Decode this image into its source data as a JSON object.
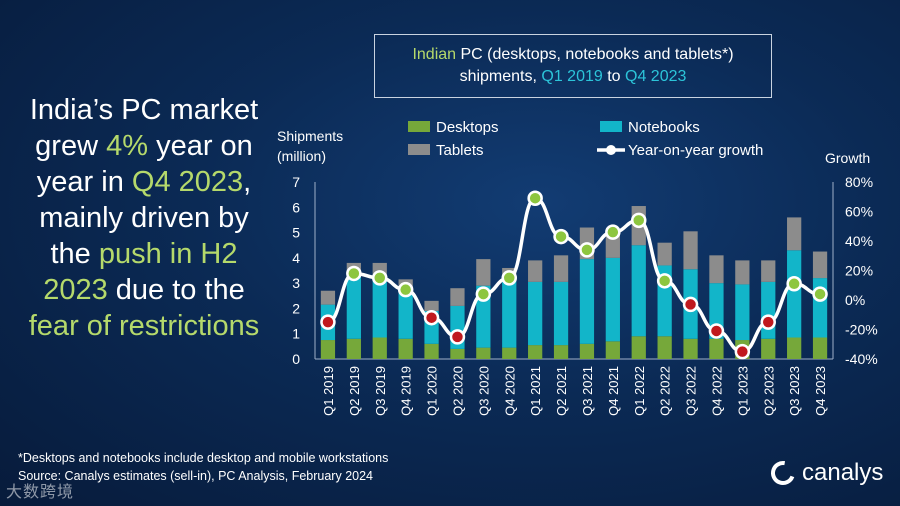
{
  "headline": {
    "l1": "India’s PC market",
    "l2a": "grew ",
    "l2b": "4%",
    "l2c": " year on",
    "l3a": "year in ",
    "l3b": "Q4 2023",
    "l3c": ",",
    "l4": "mainly driven by",
    "l5a": "the ",
    "l5b": "push in H2",
    "l6a": "2023",
    "l6b": " due to the",
    "l7": "fear of restrictions"
  },
  "title": {
    "part1": "Indian",
    "part2": " PC (desktops, notebooks and tablets*)",
    "part3": "shipments, ",
    "part4": "Q1 2019",
    "part5": " to ",
    "part6": "Q4 2023"
  },
  "footnote": {
    "line1": "*Desktops and notebooks  include desktop and mobile workstations",
    "line2": "Source: Canalys estimates (sell-in), PC Analysis, February 2024"
  },
  "logo": {
    "text": "canalys"
  },
  "watermark": {
    "text": "大数跨境"
  },
  "chart_data": {
    "type": "bar",
    "stacked": true,
    "categories": [
      "Q1 2019",
      "Q2 2019",
      "Q3 2019",
      "Q4 2019",
      "Q1 2020",
      "Q2 2020",
      "Q3 2020",
      "Q4 2020",
      "Q1 2021",
      "Q2 2021",
      "Q3 2021",
      "Q4 2021",
      "Q1 2022",
      "Q2 2022",
      "Q3 2022",
      "Q4 2022",
      "Q1 2023",
      "Q2 2023",
      "Q3 2023",
      "Q4 2023"
    ],
    "ylabel_line1": "Shipments",
    "ylabel_line2": "(million)",
    "y2label": "Growth",
    "ylim": [
      0,
      7
    ],
    "yticks": [
      "0",
      "1",
      "2",
      "3",
      "4",
      "5",
      "6",
      "7"
    ],
    "y2lim": [
      -40,
      80
    ],
    "y2ticks": [
      "-40%",
      "-20%",
      "0%",
      "20%",
      "40%",
      "60%",
      "80%"
    ],
    "series": [
      {
        "name": "Desktops",
        "color": "#76a83a",
        "values": [
          0.75,
          0.8,
          0.85,
          0.8,
          0.6,
          0.4,
          0.45,
          0.45,
          0.55,
          0.55,
          0.6,
          0.7,
          0.9,
          0.9,
          0.8,
          0.8,
          0.75,
          0.8,
          0.85,
          0.85
        ]
      },
      {
        "name": "Notebooks",
        "color": "#12b5c9",
        "values": [
          1.4,
          2.5,
          2.4,
          1.9,
          1.3,
          1.7,
          2.45,
          2.65,
          2.5,
          2.5,
          3.35,
          3.3,
          3.6,
          2.8,
          2.75,
          2.2,
          2.2,
          2.25,
          3.45,
          2.35
        ]
      },
      {
        "name": "Tablets",
        "color": "#8c8c8c",
        "values": [
          0.55,
          0.5,
          0.55,
          0.45,
          0.4,
          0.7,
          1.05,
          0.5,
          0.85,
          1.05,
          1.25,
          1.0,
          1.55,
          0.9,
          1.5,
          1.1,
          0.95,
          0.85,
          1.3,
          1.05
        ]
      }
    ],
    "line": {
      "name": "Year-on-year growth",
      "values": [
        -15,
        18,
        15,
        7,
        -12,
        -25,
        4,
        15,
        69,
        43,
        34,
        46,
        54,
        13,
        -3,
        -21,
        -35,
        -15,
        11,
        4
      ],
      "marker_colors": [
        "red",
        "green",
        "green",
        "green",
        "red",
        "red",
        "green",
        "green",
        "green",
        "green",
        "green",
        "green",
        "green",
        "green",
        "red",
        "red",
        "red",
        "red",
        "green",
        "green"
      ]
    },
    "colors": {
      "red": "#c0191e",
      "green": "#8dc63f",
      "line": "#ffffff"
    }
  }
}
